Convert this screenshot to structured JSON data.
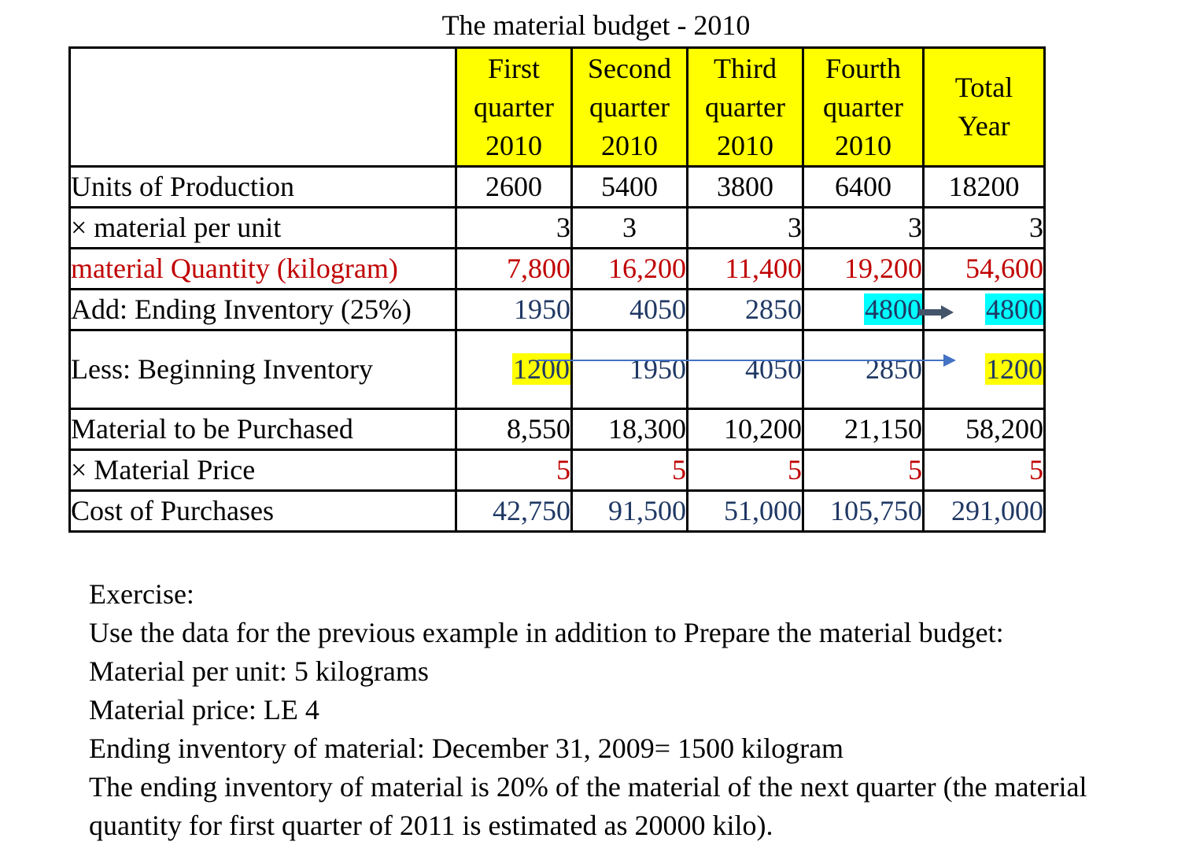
{
  "title": "The material budget - 2010",
  "table": {
    "header": {
      "blank": "",
      "columns": [
        [
          "First",
          "quarter",
          "2010"
        ],
        [
          "Second",
          "quarter",
          "2010"
        ],
        [
          "Third",
          "quarter",
          "2010"
        ],
        [
          "Fourth",
          "quarter",
          "2010"
        ],
        [
          "Total",
          "Year",
          ""
        ]
      ]
    },
    "rows": {
      "units": {
        "label": "Units of Production",
        "values": [
          "2600",
          "5400",
          "3800",
          "6400",
          "18200"
        ]
      },
      "per_unit": {
        "label": "× material per unit",
        "values": [
          "3",
          "3",
          "3",
          "3",
          "3"
        ]
      },
      "quantity": {
        "label": "material Quantity (kilogram)",
        "values": [
          "7,800",
          "16,200",
          "11,400",
          "19,200",
          "54,600"
        ]
      },
      "ending": {
        "label": "Add: Ending Inventory (25%)",
        "values": [
          "1950",
          "4050",
          "2850",
          "4800",
          "4800"
        ]
      },
      "beginning": {
        "label": "Less: Beginning Inventory",
        "values": [
          "1200",
          "1950",
          "4050",
          "2850",
          "1200"
        ]
      },
      "purchased": {
        "label": "Material to be Purchased",
        "values": [
          "8,550",
          "18,300",
          "10,200",
          "21,150",
          "58,200"
        ]
      },
      "price": {
        "label": "× Material Price",
        "values": [
          "5",
          "5",
          "5",
          "5",
          "5"
        ]
      },
      "cost": {
        "label": "Cost of Purchases",
        "values": [
          "42,750",
          "91,500",
          "51,000",
          "105,750",
          "291,000"
        ]
      }
    }
  },
  "colors": {
    "header_fill": "#ffff00",
    "highlight_yellow": "#ffff00",
    "highlight_cyan": "#00ffff",
    "red_text": "#c00000",
    "blue_text": "#1f3864",
    "arrow": "#4472c4"
  },
  "exercise": {
    "lines": [
      "Exercise:",
      "Use the data for the previous example in addition to Prepare the material budget:",
      "Material per unit: 5 kilograms",
      "Material price: LE 4",
      "Ending inventory of material: December 31, 2009= 1500 kilogram",
      "The ending inventory of material is 20% of the material of the next quarter (the material",
      "quantity for first quarter of 2011 is estimated as 20000 kilo)."
    ]
  }
}
